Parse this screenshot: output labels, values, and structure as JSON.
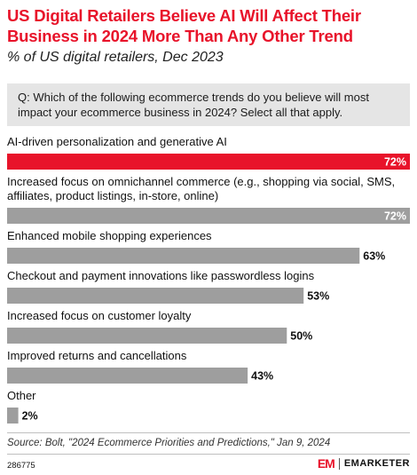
{
  "header": {
    "title": "US Digital Retailers Believe AI Will Affect Their Business in 2024 More Than Any Other Trend",
    "subtitle": "% of US digital retailers, Dec 2023"
  },
  "question": "Q: Which of the following ecommerce trends do you believe will most impact your ecommerce business in 2024? Select all that apply.",
  "chart_data": {
    "type": "bar",
    "orientation": "horizontal",
    "categories": [
      [
        "AI-driven personalization and generative AI"
      ],
      [
        "Increased focus on omnichannel commerce (e.g., shopping via social, SMS,",
        "affiliates, product listings, in-store, online)"
      ],
      [
        "Enhanced mobile shopping experiences"
      ],
      [
        "Checkout and payment innovations like passwordless logins"
      ],
      [
        "Increased focus on customer loyalty"
      ],
      [
        "Improved returns and cancellations"
      ],
      [
        "Other"
      ]
    ],
    "values": [
      72,
      72,
      63,
      53,
      50,
      43,
      2
    ],
    "value_labels": [
      "72%",
      "72%",
      "63%",
      "53%",
      "50%",
      "43%",
      "2%"
    ],
    "highlight_index": 0,
    "xlim": [
      0,
      72
    ],
    "colors": {
      "highlight": "#e8132a",
      "default": "#9e9e9e"
    }
  },
  "footer": {
    "source": "Source: Bolt, \"2024 Ecommerce Priorities and Predictions,\" Jan 9, 2024",
    "chart_id": "286775",
    "logo_mark": "EM",
    "logo_text": "EMARKETER"
  }
}
